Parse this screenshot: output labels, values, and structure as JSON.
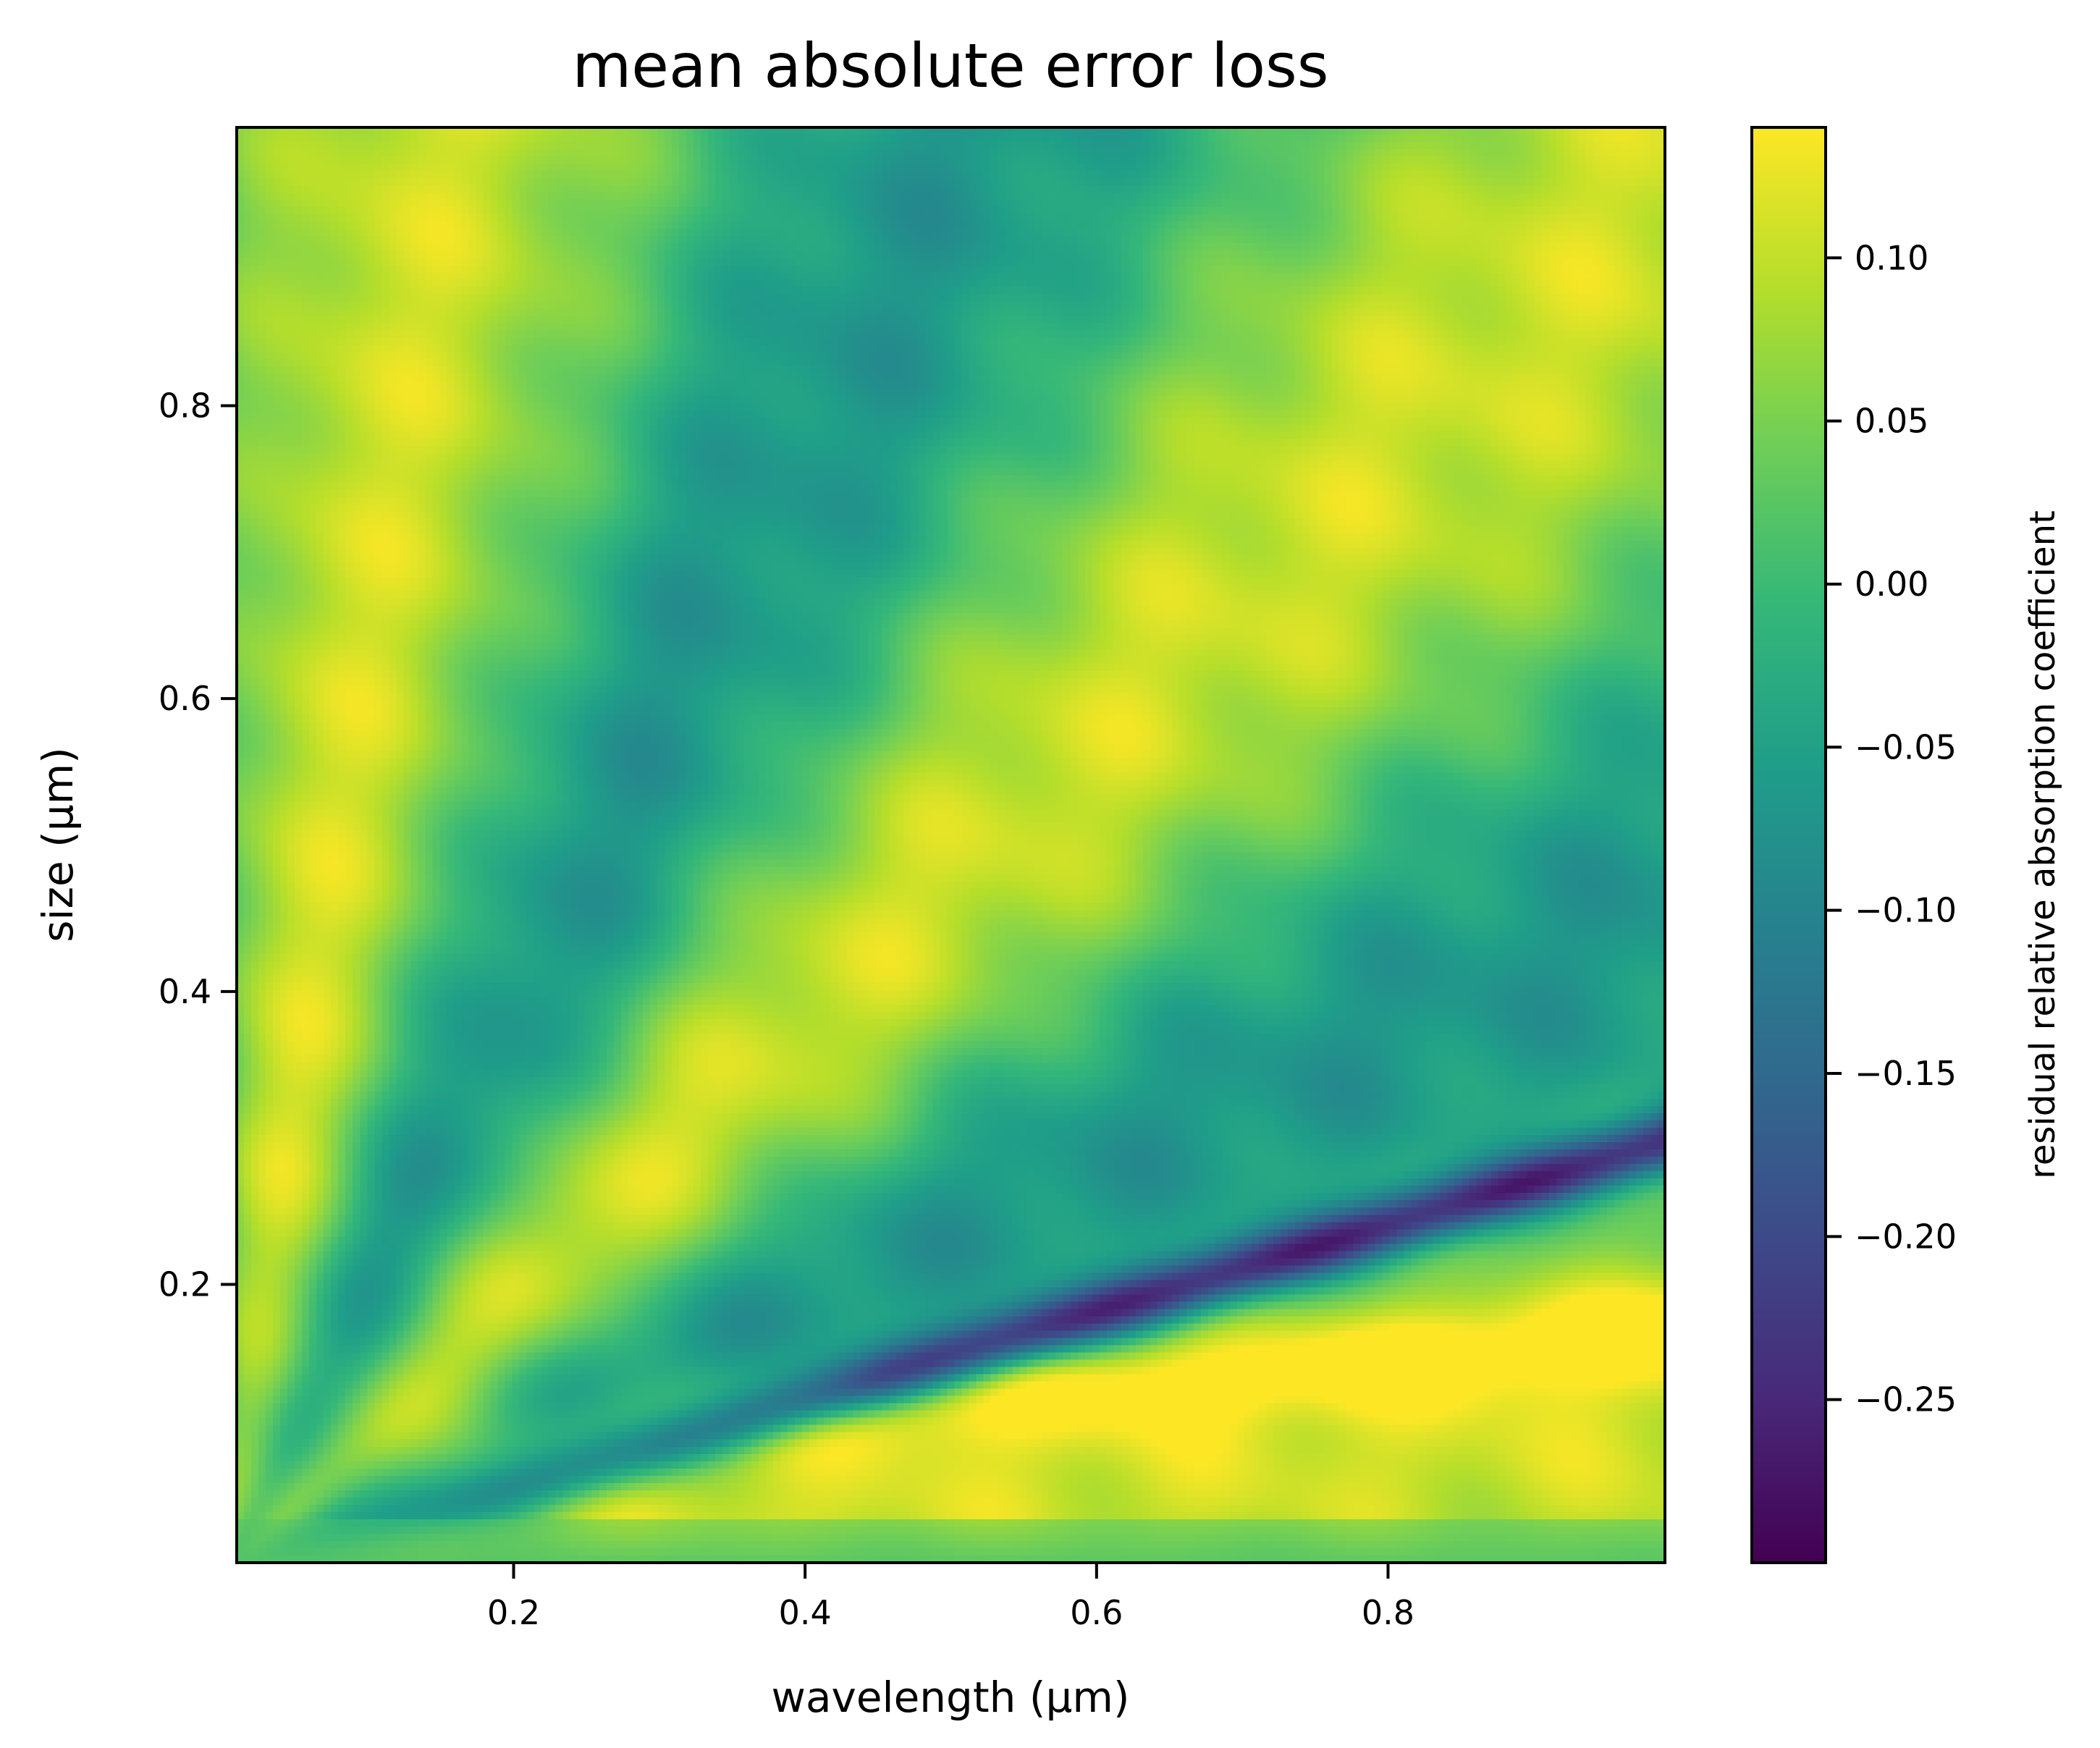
{
  "chart_data": {
    "type": "heatmap",
    "title": "mean absolute error loss",
    "xlabel": "wavelength (μm)",
    "ylabel": "size (μm)",
    "xlim": [
      0.01,
      0.99
    ],
    "ylim": [
      0.01,
      0.99
    ],
    "xticks": [
      {
        "value": 0.2,
        "label": "0.2"
      },
      {
        "value": 0.4,
        "label": "0.4"
      },
      {
        "value": 0.6,
        "label": "0.6"
      },
      {
        "value": 0.8,
        "label": "0.8"
      }
    ],
    "yticks": [
      {
        "value": 0.2,
        "label": "0.2"
      },
      {
        "value": 0.4,
        "label": "0.4"
      },
      {
        "value": 0.6,
        "label": "0.6"
      },
      {
        "value": 0.8,
        "label": "0.8"
      }
    ],
    "colorbar": {
      "label": "residual relative absorption coefficient",
      "colormap": "viridis",
      "vmin": -0.3,
      "vmax": 0.14,
      "ticks": [
        {
          "value": 0.1,
          "label": "0.10"
        },
        {
          "value": 0.05,
          "label": "0.05"
        },
        {
          "value": 0.0,
          "label": "0.00"
        },
        {
          "value": -0.05,
          "label": "−0.05"
        },
        {
          "value": -0.1,
          "label": "−0.10"
        },
        {
          "value": -0.15,
          "label": "−0.15"
        },
        {
          "value": -0.2,
          "label": "−0.20"
        },
        {
          "value": -0.25,
          "label": "−0.25"
        }
      ]
    },
    "grid": false,
    "field_description": "fan of alternating positive and negative residual bands radiating from the origin (small size, small wavelength); strong negative streaks near size/wavelength ≈ 0.3, bright positive band near size ≈ 0.1–0.17 at large wavelengths"
  },
  "colors": {
    "viridis_stops": [
      "#440154",
      "#482878",
      "#3e4989",
      "#31688e",
      "#26828e",
      "#1f9e89",
      "#35b779",
      "#6ece58",
      "#b5de2b",
      "#fde725"
    ]
  }
}
